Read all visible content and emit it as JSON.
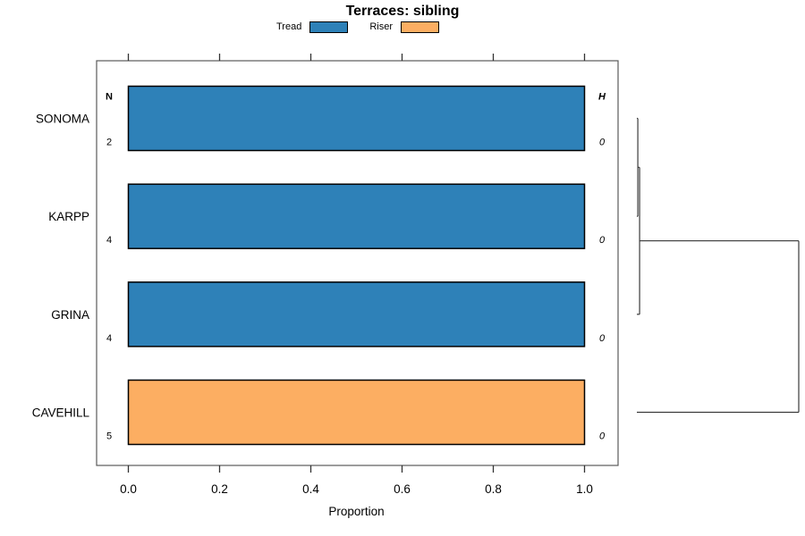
{
  "title": "Terraces: sibling",
  "chart_data": {
    "type": "bar",
    "orientation": "horizontal",
    "stacked": true,
    "title": "Terraces: sibling",
    "xlabel": "Proportion",
    "xlim": [
      0,
      1
    ],
    "xtick_labels": [
      "0.0",
      "0.2",
      "0.4",
      "0.6",
      "0.8",
      "1.0"
    ],
    "grid": false,
    "legend_position": "top-center",
    "categories": [
      "SONOMA",
      "KARPP",
      "GRINA",
      "CAVEHILL"
    ],
    "series": [
      {
        "name": "Tread",
        "color": "#2e81b8",
        "values": [
          1.0,
          1.0,
          1.0,
          0.0
        ]
      },
      {
        "name": "Riser",
        "color": "#fcae62",
        "values": [
          0.0,
          0.0,
          0.0,
          1.0
        ]
      }
    ],
    "row_annotations": {
      "left_header": "N",
      "left_values": [
        "2",
        "4",
        "4",
        "5"
      ],
      "right_header": "H",
      "right_values": [
        "0",
        "0",
        "0",
        "0"
      ]
    },
    "dendrogram": {
      "merges": [
        {
          "children": [
            "leaf:0",
            "leaf:1"
          ],
          "height": 0.006
        },
        {
          "children": [
            "merge:0",
            "leaf:2"
          ],
          "height": 0.017
        },
        {
          "children": [
            "merge:1",
            "leaf:3"
          ],
          "height": 1.0
        }
      ]
    }
  },
  "colors": {
    "bar_border": "#000000",
    "box_border": "#5a5a5a",
    "tick": "#333333",
    "dendrogram_line": "#3a3a3a",
    "text": "#000000"
  }
}
